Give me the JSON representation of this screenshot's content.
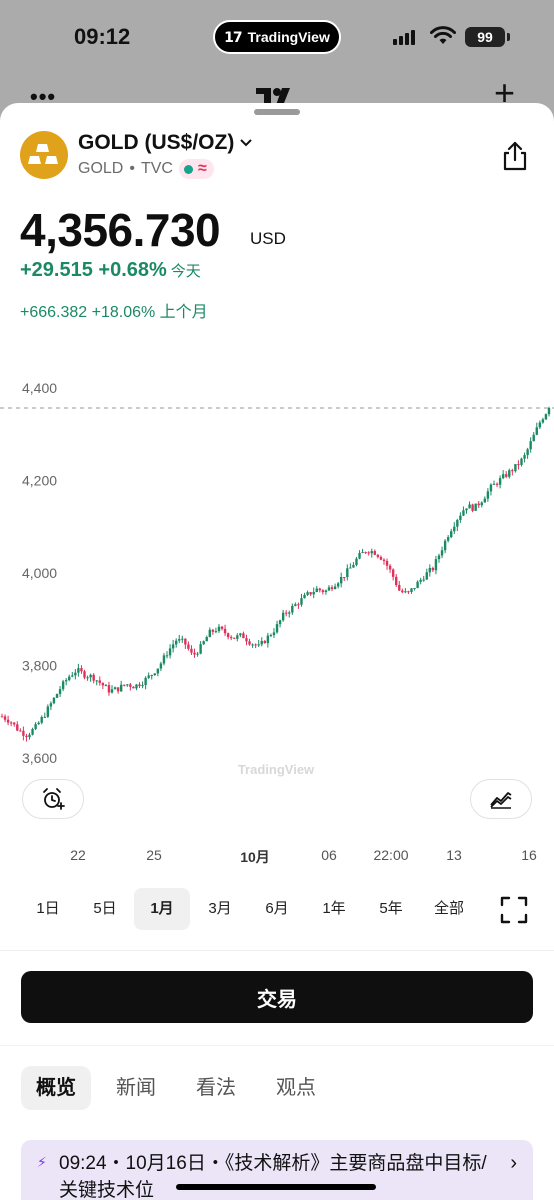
{
  "status_bar": {
    "time": "09:12",
    "dynamic_island_app": "TradingView",
    "battery": "99"
  },
  "symbol": {
    "name": "GOLD (US$/OZ)",
    "ticker": "GOLD",
    "separator": "•",
    "exchange": "TVC",
    "logo_color": "#e0a21a",
    "wave_glyph": "≈"
  },
  "quote": {
    "price": "4,356.730",
    "currency": "USD",
    "change_today": "+29.515 +0.68%",
    "change_today_label": "今天",
    "change_month": "+666.382 +18.06% 上个月",
    "positive_color": "#1b8a63"
  },
  "chart_data": {
    "type": "candlestick",
    "y_ticks": [
      "4,400",
      "4,200",
      "4,000",
      "3,800",
      "3,600"
    ],
    "ylim": [
      3580,
      4420
    ],
    "last_price": 4356.73,
    "x_ticks": [
      "22",
      "25",
      "10月",
      "06",
      "22:00",
      "13",
      "16"
    ],
    "watermark": "TradingView",
    "up_color": "#1b8a63",
    "down_color": "#e0315a",
    "close_path": [
      3690,
      3680,
      3660,
      3650,
      3665,
      3690,
      3720,
      3750,
      3775,
      3790,
      3780,
      3775,
      3760,
      3745,
      3750,
      3760,
      3755,
      3765,
      3780,
      3800,
      3830,
      3855,
      3850,
      3820,
      3840,
      3870,
      3880,
      3870,
      3860,
      3865,
      3850,
      3840,
      3860,
      3880,
      3910,
      3925,
      3940,
      3955,
      3965,
      3960,
      3975,
      3990,
      4010,
      4035,
      4050,
      4045,
      4030,
      4000,
      3960,
      3955,
      3975,
      3995,
      4010,
      4050,
      4090,
      4120,
      4145,
      4140,
      4160,
      4185,
      4200,
      4215,
      4230,
      4250,
      4290,
      4330,
      4357
    ]
  },
  "buttons": {
    "alarm_icon": "alarm-plus-icon",
    "compare_icon": "compare-chart-icon",
    "fullscreen_icon": "fullscreen-icon"
  },
  "ranges": [
    "1日",
    "5日",
    "1月",
    "3月",
    "6月",
    "1年",
    "5年",
    "全部"
  ],
  "active_range": "1月",
  "trade_label": "交易",
  "tabs": [
    "概览",
    "新闻",
    "看法",
    "观点"
  ],
  "active_tab": "概览",
  "news": {
    "text": "09:24・10月16日・《技术解析》主要商品盘中目标/关键技术位",
    "bolt_icon": "lightning-icon",
    "chevron": "›"
  }
}
